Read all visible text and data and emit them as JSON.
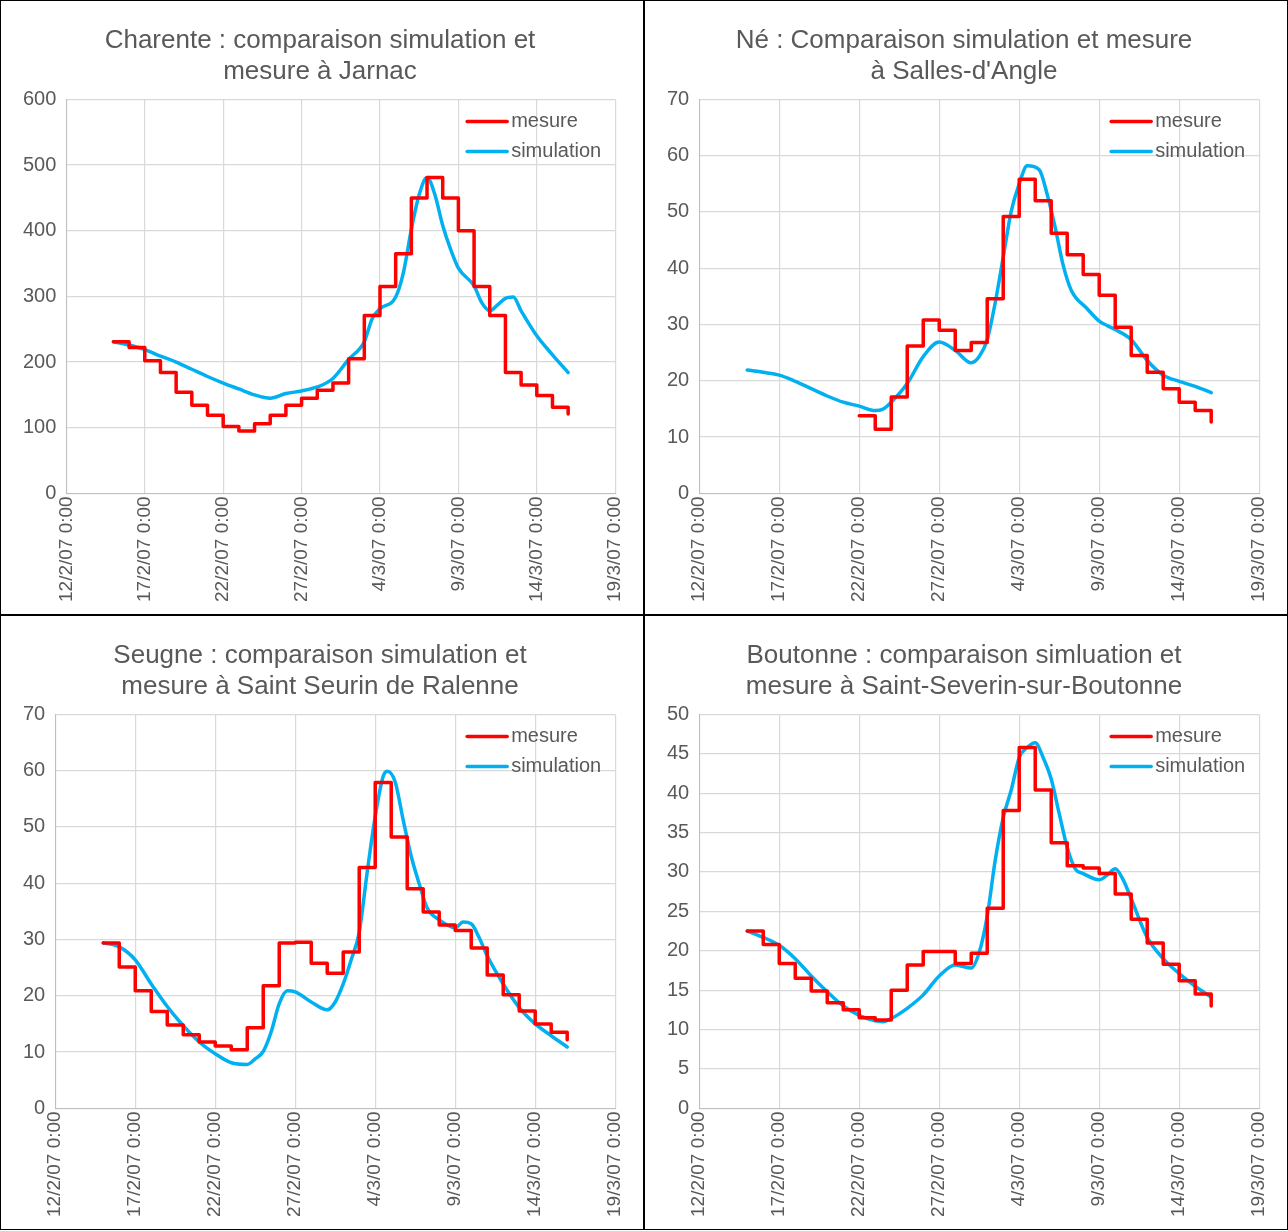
{
  "chart_data": [
    {
      "type": "line",
      "title": "Charente : comparaison simulation et mesure à Jarnac",
      "legend": "top right",
      "grid": true,
      "xlim": [
        "--02-12",
        "--03-19"
      ],
      "xticks": [
        {
          "value": "--02-12",
          "label": "12/2/07 0:00"
        },
        {
          "value": "--02-17",
          "label": "17/2/07 0:00"
        },
        {
          "value": "--02-22",
          "label": "22/2/07 0:00"
        },
        {
          "value": "--02-27",
          "label": "27/2/07 0:00"
        },
        {
          "value": "--03-04",
          "label": "4/3/07 0:00"
        },
        {
          "value": "--03-09",
          "label": "9/3/07 0:00"
        },
        {
          "value": "--03-14",
          "label": "14/3/07 0:00"
        },
        {
          "value": "--03-19",
          "label": "19/3/07 0:00"
        }
      ],
      "ylim": [
        0,
        600
      ],
      "yticks": [
        0,
        100,
        200,
        300,
        400,
        500,
        600
      ],
      "series": [
        {
          "name": "mesure",
          "type": "step",
          "color": "#ff0000",
          "x": [
            "--02-15",
            "--02-16",
            "--02-17",
            "--02-18",
            "--02-19",
            "--02-20",
            "--02-21",
            "--02-22",
            "--02-23",
            "--02-24",
            "--02-25",
            "--02-26",
            "--02-27",
            "--02-28",
            "--03-01",
            "--03-02",
            "--03-03",
            "--03-04",
            "--03-05",
            "--03-06",
            "--03-07",
            "--03-08",
            "--03-09",
            "--03-10",
            "--03-11",
            "--03-12",
            "--03-13",
            "--03-14",
            "--03-15",
            "--03-16"
          ],
          "values": [
            231,
            222,
            202,
            184,
            154,
            134,
            119,
            102,
            95,
            106,
            119,
            134,
            145,
            157,
            168,
            205,
            271,
            315,
            365,
            450,
            481,
            450,
            400,
            315,
            271,
            184,
            165,
            149,
            131,
            121
          ]
        },
        {
          "name": "simulation",
          "type": "line",
          "color": "#00b0f0",
          "x": [
            "--02-15",
            "--02-16",
            "--02-17",
            "--02-18",
            "--02-19",
            "--02-20",
            "--02-21",
            "--02-22",
            "--02-23",
            "--02-24",
            "--02-25",
            "--02-26",
            "--02-27",
            "--02-28",
            "--03-01",
            "--03-02",
            "--03-03",
            "--03-03T12:00",
            "--03-04",
            "--03-05",
            "--03-05T12:00",
            "--03-06",
            "--03-06T12:00",
            "--03-07",
            "--03-07T12:00",
            "--03-08",
            "--03-08T12:00",
            "--03-09",
            "--03-10",
            "--03-10T12:00",
            "--03-11",
            "--03-11T12:00",
            "--03-12",
            "--03-12T12:00",
            "--03-13",
            "--03-14",
            "--03-15",
            "--03-16"
          ],
          "values": [
            231,
            226,
            219,
            209,
            200,
            189,
            178,
            168,
            159,
            150,
            145,
            152,
            156,
            162,
            175,
            204,
            231,
            266,
            281,
            299,
            337,
            402,
            455,
            481,
            455,
            408,
            372,
            343,
            316,
            290,
            278,
            287,
            297,
            299,
            278,
            240,
            211,
            184
          ]
        }
      ]
    },
    {
      "type": "line",
      "title": "Né : Comparaison simulation et mesure à Salles-d'Angle",
      "legend": "top right",
      "grid": true,
      "xlim": [
        "--02-12",
        "--03-19"
      ],
      "xticks": [
        {
          "value": "--02-12",
          "label": "12/2/07 0:00"
        },
        {
          "value": "--02-17",
          "label": "17/2/07 0:00"
        },
        {
          "value": "--02-22",
          "label": "22/2/07 0:00"
        },
        {
          "value": "--02-27",
          "label": "27/2/07 0:00"
        },
        {
          "value": "--03-04",
          "label": "4/3/07 0:00"
        },
        {
          "value": "--03-09",
          "label": "9/3/07 0:00"
        },
        {
          "value": "--03-14",
          "label": "14/3/07 0:00"
        },
        {
          "value": "--03-19",
          "label": "19/3/07 0:00"
        }
      ],
      "ylim": [
        0,
        70
      ],
      "yticks": [
        0,
        10,
        20,
        30,
        40,
        50,
        60,
        70
      ],
      "series": [
        {
          "name": "mesure",
          "type": "step",
          "color": "#ff0000",
          "x": [
            "--02-22",
            "--02-23",
            "--02-24",
            "--02-25",
            "--02-26",
            "--02-27",
            "--02-28",
            "--03-01",
            "--03-02",
            "--03-03",
            "--03-04",
            "--03-05",
            "--03-06",
            "--03-07",
            "--03-08",
            "--03-09",
            "--03-10",
            "--03-11",
            "--03-12",
            "--03-13",
            "--03-14",
            "--03-15",
            "--03-16"
          ],
          "values": [
            13.8,
            11.4,
            17.1,
            26.2,
            30.8,
            29.0,
            25.4,
            26.8,
            34.6,
            49.2,
            55.8,
            52.0,
            46.2,
            42.4,
            38.9,
            35.2,
            29.5,
            24.5,
            21.5,
            18.6,
            16.2,
            14.7,
            12.7
          ]
        },
        {
          "name": "simulation",
          "type": "line",
          "color": "#00b0f0",
          "x": [
            "--02-15",
            "--02-16",
            "--02-17",
            "--02-18",
            "--02-19",
            "--02-20",
            "--02-21",
            "--02-22",
            "--02-23",
            "--02-23T12:00",
            "--02-24",
            "--02-25",
            "--02-26",
            "--02-27",
            "--02-28",
            "--03-01",
            "--03-01T12:00",
            "--03-02",
            "--03-02T12:00",
            "--03-03",
            "--03-03T12:00",
            "--03-04",
            "--03-04T12:00",
            "--03-05T06:00",
            "--03-05T18:00",
            "--03-06T06:00",
            "--03-06T18:00",
            "--03-07T06:00",
            "--03-08T06:00",
            "--03-09",
            "--03-09T12:00",
            "--03-10",
            "--03-11",
            "--03-12",
            "--03-13",
            "--03-14",
            "--03-15",
            "--03-16"
          ],
          "values": [
            21.9,
            21.5,
            21.0,
            19.9,
            18.6,
            17.3,
            16.2,
            15.5,
            14.7,
            15.0,
            16.2,
            19.5,
            24.3,
            26.9,
            25.4,
            23.2,
            24.3,
            27.3,
            33.9,
            42.0,
            50.1,
            55.0,
            58.2,
            57.5,
            53.1,
            47.2,
            40.5,
            36.1,
            32.8,
            30.6,
            29.8,
            29.1,
            27.3,
            23.6,
            21.0,
            19.9,
            19.0,
            17.9
          ]
        }
      ]
    },
    {
      "type": "line",
      "title": "Seugne : comparaison simulation et mesure à Saint Seurin de Ralenne",
      "legend": "top right",
      "grid": true,
      "xlim": [
        "--02-12",
        "--03-19"
      ],
      "xticks": [
        {
          "value": "--02-12",
          "label": "12/2/07 0:00"
        },
        {
          "value": "--02-17",
          "label": "17/2/07 0:00"
        },
        {
          "value": "--02-22",
          "label": "22/2/07 0:00"
        },
        {
          "value": "--02-27",
          "label": "27/2/07 0:00"
        },
        {
          "value": "--03-04",
          "label": "4/3/07 0:00"
        },
        {
          "value": "--03-09",
          "label": "9/3/07 0:00"
        },
        {
          "value": "--03-14",
          "label": "14/3/07 0:00"
        },
        {
          "value": "--03-19",
          "label": "19/3/07 0:00"
        }
      ],
      "ylim": [
        0,
        70
      ],
      "yticks": [
        0,
        10,
        20,
        30,
        40,
        50,
        60,
        70
      ],
      "series": [
        {
          "name": "mesure",
          "type": "step",
          "color": "#ff0000",
          "x": [
            "--02-15",
            "--02-16",
            "--02-17",
            "--02-18",
            "--02-19",
            "--02-20",
            "--02-21",
            "--02-22",
            "--02-23",
            "--02-24",
            "--02-25",
            "--02-26",
            "--02-27",
            "--02-28",
            "--03-01",
            "--03-02",
            "--03-03",
            "--03-04",
            "--03-05",
            "--03-06",
            "--03-07",
            "--03-08",
            "--03-09",
            "--03-10",
            "--03-11",
            "--03-12",
            "--03-13",
            "--03-14",
            "--03-15",
            "--03-16"
          ],
          "values": [
            29.4,
            25.1,
            20.9,
            17.2,
            14.8,
            13.1,
            11.8,
            11.1,
            10.4,
            14.3,
            21.8,
            29.4,
            29.5,
            25.8,
            24.0,
            27.8,
            42.8,
            57.9,
            48.2,
            39.0,
            34.9,
            32.6,
            31.6,
            28.5,
            23.7,
            20.2,
            17.3,
            15.0,
            13.5,
            12.2
          ]
        },
        {
          "name": "simulation",
          "type": "line",
          "color": "#00b0f0",
          "x": [
            "--02-15",
            "--02-16",
            "--02-17",
            "--02-18",
            "--02-19",
            "--02-20",
            "--02-21",
            "--02-22",
            "--02-23",
            "--02-24",
            "--02-24T12:00",
            "--02-25",
            "--02-25T12:00",
            "--02-26",
            "--02-26T12:00",
            "--02-27",
            "--02-28",
            "--03-01",
            "--03-01T12:00",
            "--03-02",
            "--03-02T12:00",
            "--03-03",
            "--03-03T12:00",
            "--03-04",
            "--03-04T12:00",
            "--03-04T18:00",
            "--03-05T06:00",
            "--03-05T18:00",
            "--03-06T06:00",
            "--03-06T18:00",
            "--03-07T06:00",
            "--03-08",
            "--03-09",
            "--03-09T12:00",
            "--03-10",
            "--03-10T12:00",
            "--03-11",
            "--03-12",
            "--03-13",
            "--03-14",
            "--03-15",
            "--03-16"
          ],
          "values": [
            29.4,
            28.7,
            26.4,
            22.1,
            18.1,
            14.7,
            11.8,
            9.7,
            8.1,
            7.8,
            8.8,
            10.1,
            13.6,
            18.6,
            20.9,
            20.7,
            18.9,
            17.5,
            18.9,
            22.1,
            26.4,
            31.3,
            42.0,
            51.9,
            59.0,
            59.9,
            58.0,
            51.2,
            44.8,
            39.9,
            35.6,
            33.5,
            32.1,
            33.1,
            32.8,
            30.3,
            27.1,
            22.1,
            17.9,
            15.0,
            12.9,
            10.9
          ]
        }
      ]
    },
    {
      "type": "line",
      "title": "Boutonne : comparaison simluation et mesure à Saint-Severin-sur-Boutonne",
      "legend": "top right",
      "grid": true,
      "xlim": [
        "--02-12",
        "--03-19"
      ],
      "xticks": [
        {
          "value": "--02-12",
          "label": "12/2/07 0:00"
        },
        {
          "value": "--02-17",
          "label": "17/2/07 0:00"
        },
        {
          "value": "--02-22",
          "label": "22/2/07 0:00"
        },
        {
          "value": "--02-27",
          "label": "27/2/07 0:00"
        },
        {
          "value": "--03-04",
          "label": "4/3/07 0:00"
        },
        {
          "value": "--03-09",
          "label": "9/3/07 0:00"
        },
        {
          "value": "--03-14",
          "label": "14/3/07 0:00"
        },
        {
          "value": "--03-19",
          "label": "19/3/07 0:00"
        }
      ],
      "ylim": [
        0,
        50
      ],
      "yticks": [
        0,
        5,
        10,
        15,
        20,
        25,
        30,
        35,
        40,
        45,
        50
      ],
      "series": [
        {
          "name": "mesure",
          "type": "step",
          "color": "#ff0000",
          "x": [
            "--02-15",
            "--02-16",
            "--02-17",
            "--02-18",
            "--02-19",
            "--02-20",
            "--02-21",
            "--02-22",
            "--02-23",
            "--02-24",
            "--02-25",
            "--02-26",
            "--02-27",
            "--02-28",
            "--03-01",
            "--03-02",
            "--03-03",
            "--03-04",
            "--03-05",
            "--03-06",
            "--03-07",
            "--03-08",
            "--03-09",
            "--03-10",
            "--03-11",
            "--03-12",
            "--03-13",
            "--03-14",
            "--03-15",
            "--03-16"
          ],
          "values": [
            22.5,
            20.8,
            18.4,
            16.5,
            14.9,
            13.4,
            12.5,
            11.5,
            11.2,
            15.0,
            18.2,
            19.9,
            19.9,
            18.4,
            19.7,
            25.4,
            37.8,
            45.8,
            40.4,
            33.7,
            30.8,
            30.5,
            29.8,
            27.2,
            24.0,
            21.0,
            18.3,
            16.2,
            14.5,
            13.0
          ]
        },
        {
          "name": "simulation",
          "type": "line",
          "color": "#00b0f0",
          "x": [
            "--02-15",
            "--02-16",
            "--02-17",
            "--02-18",
            "--02-19",
            "--02-20",
            "--02-21",
            "--02-22",
            "--02-23",
            "--02-23T12:00",
            "--02-24",
            "--02-25",
            "--02-26",
            "--02-27",
            "--02-28",
            "--03-01",
            "--03-01T12:00",
            "--03-02",
            "--03-02T12:00",
            "--03-03",
            "--03-03T12:00",
            "--03-04",
            "--03-04T12:00",
            "--03-05",
            "--03-05T12:00",
            "--03-06",
            "--03-06T12:00",
            "--03-07",
            "--03-07T12:00",
            "--03-08",
            "--03-09",
            "--03-09T12:00",
            "--03-10",
            "--03-10T12:00",
            "--03-11",
            "--03-12",
            "--03-13",
            "--03-14",
            "--03-15",
            "--03-16"
          ],
          "values": [
            22.5,
            21.7,
            20.7,
            19.0,
            16.8,
            14.8,
            13.0,
            11.8,
            11.1,
            11.0,
            11.4,
            12.7,
            14.4,
            16.8,
            18.2,
            17.8,
            19.8,
            24.4,
            31.5,
            36.9,
            40.4,
            44.5,
            45.8,
            46.4,
            44.5,
            41.8,
            37.4,
            33.1,
            30.4,
            29.8,
            29.0,
            29.6,
            30.4,
            29.0,
            26.6,
            21.7,
            19.0,
            17.1,
            15.5,
            14.1
          ]
        }
      ]
    }
  ]
}
